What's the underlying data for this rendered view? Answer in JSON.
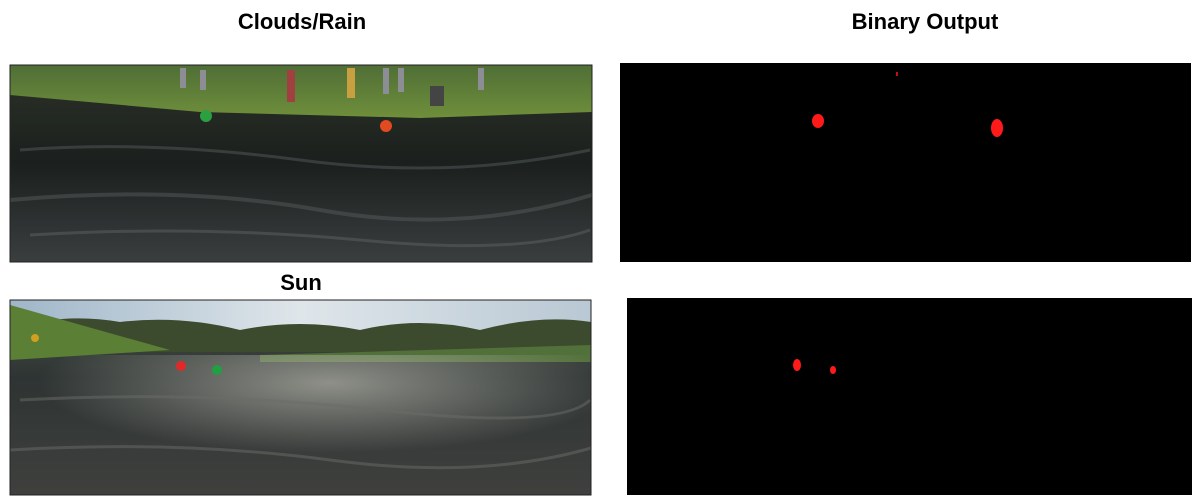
{
  "labels": {
    "clouds_rain": "Clouds/Rain",
    "binary_output": "Binary Output",
    "sun": "Sun"
  }
}
